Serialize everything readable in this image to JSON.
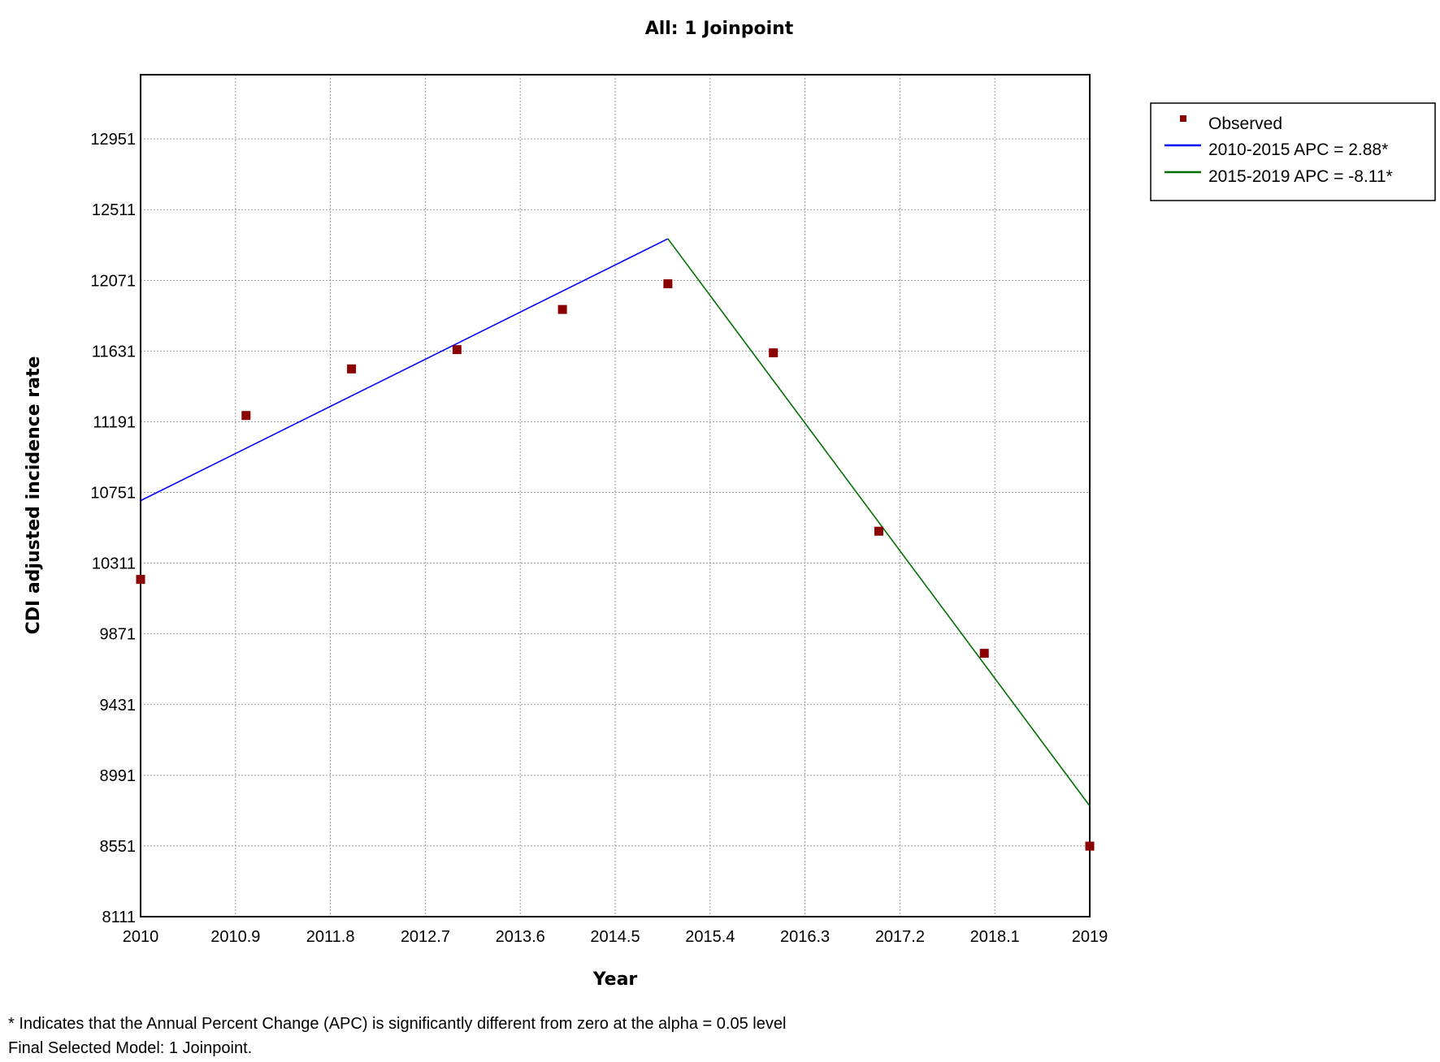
{
  "chart_data": {
    "type": "line",
    "title": "All: 1 Joinpoint",
    "xlabel": "Year",
    "ylabel": "CDI adjusted incidence rate",
    "xlim": [
      2010,
      2019
    ],
    "ylim": [
      8111,
      13351
    ],
    "x_ticks": [
      "2010",
      "2010.9",
      "2011.8",
      "2012.7",
      "2013.6",
      "2014.5",
      "2015.4",
      "2016.3",
      "2017.2",
      "2018.1",
      "2019"
    ],
    "y_ticks": [
      "8111",
      "8551",
      "8991",
      "9431",
      "9871",
      "10311",
      "10751",
      "11191",
      "11631",
      "12071",
      "12511",
      "12951"
    ],
    "grid": true,
    "legend_position": "top-right",
    "observed": {
      "name": "Observed",
      "color": "#8b0000",
      "x": [
        2010,
        2011,
        2012,
        2013,
        2014,
        2015,
        2016,
        2017,
        2018,
        2019
      ],
      "y": [
        10210,
        11230,
        11520,
        11640,
        11890,
        12050,
        11620,
        10510,
        9750,
        8550
      ]
    },
    "series": [
      {
        "name": "2010-2015 APC  =  2.88*",
        "color": "#0000ff",
        "x": [
          2010,
          2015
        ],
        "y": [
          10700,
          12330
        ]
      },
      {
        "name": "2015-2019 APC  =  -8.11*",
        "color": "#007000",
        "x": [
          2015,
          2019
        ],
        "y": [
          12330,
          8800
        ]
      }
    ]
  },
  "footnotes": {
    "line1": "* Indicates that the Annual Percent Change (APC) is significantly different from zero at the alpha = 0.05 level",
    "line2": "Final Selected Model: 1 Joinpoint."
  }
}
